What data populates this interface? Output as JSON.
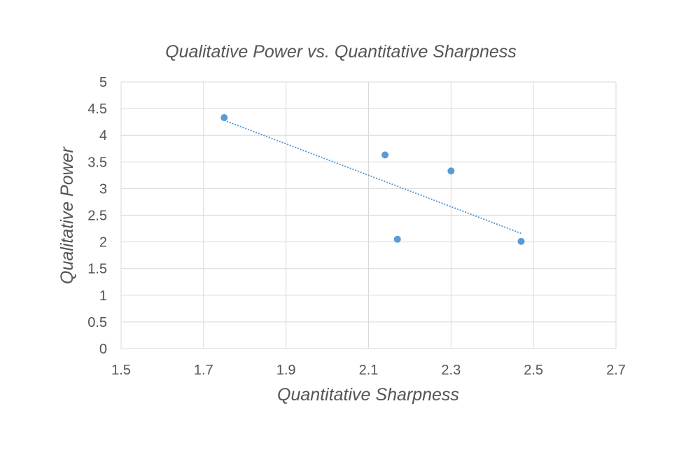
{
  "chart_data": {
    "type": "scatter",
    "title": "Qualitative Power vs. Quantitative Sharpness",
    "xlabel": "Quantitative Sharpness",
    "ylabel": "Qualitative Power",
    "xlim": [
      1.5,
      2.7
    ],
    "ylim": [
      0,
      5
    ],
    "x_ticks": [
      "1.5",
      "1.7",
      "1.9",
      "2.1",
      "2.3",
      "2.5",
      "2.7"
    ],
    "y_ticks": [
      "0",
      "0.5",
      "1",
      "1.5",
      "2",
      "2.5",
      "3",
      "3.5",
      "4",
      "4.5",
      "5"
    ],
    "grid": true,
    "legend": "none",
    "series": [
      {
        "color": "#5b9bd5",
        "points": [
          {
            "x": 1.75,
            "y": 4.33
          },
          {
            "x": 2.14,
            "y": 3.63
          },
          {
            "x": 2.3,
            "y": 3.33
          },
          {
            "x": 2.17,
            "y": 2.05
          },
          {
            "x": 2.47,
            "y": 2.01
          }
        ]
      }
    ],
    "trendline": {
      "type": "linear",
      "color": "#5b9bd5",
      "style": "dotted",
      "x_range": [
        1.75,
        2.47
      ],
      "y_range": [
        4.28,
        2.16
      ]
    }
  }
}
